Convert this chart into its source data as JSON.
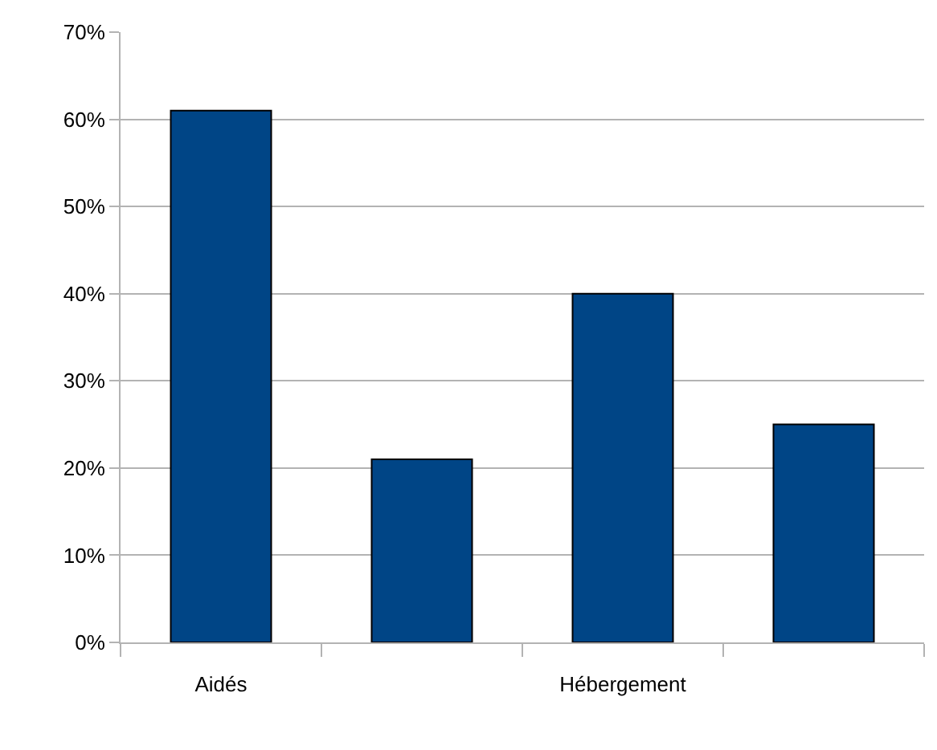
{
  "chart_data": {
    "type": "bar",
    "categories": [
      "Aidés",
      null,
      "Hébergement",
      null
    ],
    "values": [
      61,
      21,
      40,
      25
    ],
    "color": "#004586",
    "ylim": [
      0,
      70
    ],
    "yticks": [
      {
        "value": 0,
        "label": "0%"
      },
      {
        "value": 10,
        "label": "10%"
      },
      {
        "value": 20,
        "label": "20%"
      },
      {
        "value": 30,
        "label": "30%"
      },
      {
        "value": 40,
        "label": "40%"
      },
      {
        "value": 50,
        "label": "50%"
      },
      {
        "value": 60,
        "label": "60%"
      },
      {
        "value": 70,
        "label": "70%"
      }
    ],
    "grid": "y",
    "legend": false
  }
}
